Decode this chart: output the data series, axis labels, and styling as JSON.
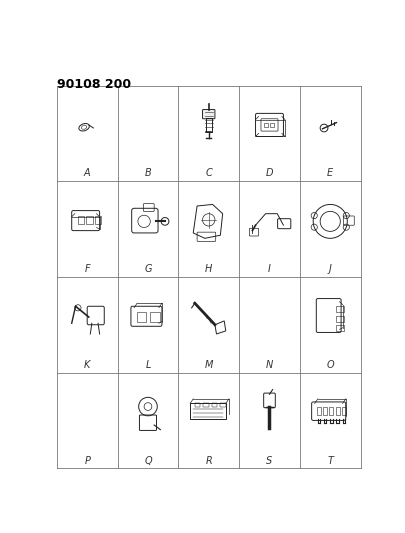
{
  "title": "90108 200",
  "background_color": "#ffffff",
  "grid_color": "#777777",
  "grid_linewidth": 0.6,
  "label_fontsize": 7,
  "label_color": "#333333",
  "cols": 5,
  "rows": 4,
  "labels": [
    "A",
    "B",
    "C",
    "D",
    "E",
    "F",
    "G",
    "H",
    "I",
    "J",
    "K",
    "L",
    "M",
    "N",
    "O",
    "P",
    "Q",
    "R",
    "S",
    "T"
  ],
  "part_color": "#222222",
  "lw": 0.7
}
